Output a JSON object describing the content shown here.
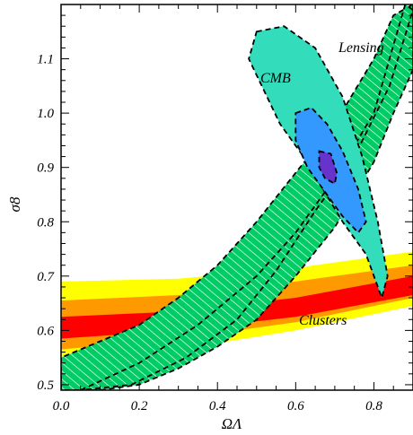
{
  "chart_data": {
    "type": "contour",
    "xlabel": "ΩΛ",
    "ylabel": "σ8",
    "xlim": [
      0.0,
      0.9
    ],
    "ylim": [
      0.49,
      1.2
    ],
    "xticks": [
      0.0,
      0.2,
      0.4,
      0.6,
      0.8
    ],
    "xtick_labels": [
      "0.0",
      "0.2",
      "0.4",
      "0.6",
      "0.8"
    ],
    "yticks": [
      0.5,
      0.6,
      0.7,
      0.8,
      0.9,
      1.0,
      1.1
    ],
    "ytick_labels": [
      "0.5",
      "0.6",
      "0.7",
      "0.8",
      "0.9",
      "1.0",
      "1.1"
    ],
    "grid": false,
    "annotations": [
      "CMB",
      "Lensing",
      "Clusters"
    ],
    "regions": [
      {
        "name": "Clusters",
        "levels": [
          {
            "level": "outer",
            "color": "#ffff00",
            "lower": [
              [
                0.0,
                0.54
              ],
              [
                0.3,
                0.565
              ],
              [
                0.6,
                0.6
              ],
              [
                0.9,
                0.645
              ]
            ],
            "upper": [
              [
                0.0,
                0.69
              ],
              [
                0.3,
                0.695
              ],
              [
                0.6,
                0.715
              ],
              [
                0.9,
                0.745
              ]
            ]
          },
          {
            "level": "middle",
            "color": "#ff9900",
            "lower": [
              [
                0.0,
                0.565
              ],
              [
                0.3,
                0.585
              ],
              [
                0.6,
                0.615
              ],
              [
                0.9,
                0.66
              ]
            ],
            "upper": [
              [
                0.0,
                0.655
              ],
              [
                0.3,
                0.665
              ],
              [
                0.6,
                0.69
              ],
              [
                0.9,
                0.72
              ]
            ]
          },
          {
            "level": "inner",
            "color": "#ff0000",
            "lower": [
              [
                0.0,
                0.585
              ],
              [
                0.3,
                0.6
              ],
              [
                0.6,
                0.625
              ],
              [
                0.9,
                0.665
              ]
            ],
            "upper": [
              [
                0.0,
                0.625
              ],
              [
                0.3,
                0.635
              ],
              [
                0.6,
                0.66
              ],
              [
                0.9,
                0.7
              ]
            ]
          }
        ]
      },
      {
        "name": "Lensing",
        "levels": [
          {
            "level": "outer",
            "color": "#00cc66",
            "polygon": [
              [
                0.0,
                0.49
              ],
              [
                0.0,
                0.55
              ],
              [
                0.1,
                0.58
              ],
              [
                0.2,
                0.61
              ],
              [
                0.3,
                0.66
              ],
              [
                0.4,
                0.72
              ],
              [
                0.5,
                0.8
              ],
              [
                0.6,
                0.89
              ],
              [
                0.7,
                0.98
              ],
              [
                0.8,
                1.1
              ],
              [
                0.85,
                1.18
              ],
              [
                0.9,
                1.2
              ],
              [
                0.9,
                1.08
              ],
              [
                0.85,
                1.0
              ],
              [
                0.8,
                0.91
              ],
              [
                0.7,
                0.79
              ],
              [
                0.6,
                0.7
              ],
              [
                0.5,
                0.62
              ],
              [
                0.4,
                0.57
              ],
              [
                0.3,
                0.53
              ],
              [
                0.2,
                0.5
              ],
              [
                0.1,
                0.49
              ]
            ]
          },
          {
            "level": "inner",
            "color": "#00cc66",
            "polygon": [
              [
                0.05,
                0.49
              ],
              [
                0.2,
                0.54
              ],
              [
                0.35,
                0.61
              ],
              [
                0.5,
                0.7
              ],
              [
                0.6,
                0.78
              ],
              [
                0.7,
                0.88
              ],
              [
                0.8,
                1.0
              ],
              [
                0.88,
                1.2
              ],
              [
                0.9,
                1.19
              ],
              [
                0.84,
                1.05
              ],
              [
                0.75,
                0.92
              ],
              [
                0.65,
                0.82
              ],
              [
                0.55,
                0.71
              ],
              [
                0.45,
                0.62
              ],
              [
                0.32,
                0.55
              ],
              [
                0.18,
                0.5
              ]
            ]
          }
        ]
      },
      {
        "name": "CMB",
        "levels": [
          {
            "level": "outer",
            "color": "#33ddbb",
            "polygon": [
              [
                0.5,
                1.15
              ],
              [
                0.57,
                1.16
              ],
              [
                0.65,
                1.12
              ],
              [
                0.72,
                1.03
              ],
              [
                0.77,
                0.92
              ],
              [
                0.81,
                0.8
              ],
              [
                0.835,
                0.7
              ],
              [
                0.82,
                0.66
              ],
              [
                0.78,
                0.74
              ],
              [
                0.72,
                0.8
              ],
              [
                0.67,
                0.86
              ],
              [
                0.62,
                0.92
              ],
              [
                0.56,
                0.98
              ],
              [
                0.52,
                1.04
              ],
              [
                0.48,
                1.1
              ]
            ]
          },
          {
            "level": "middle",
            "color": "#3399ff",
            "polygon": [
              [
                0.6,
                1.0
              ],
              [
                0.64,
                1.01
              ],
              [
                0.68,
                0.98
              ],
              [
                0.72,
                0.93
              ],
              [
                0.76,
                0.86
              ],
              [
                0.78,
                0.8
              ],
              [
                0.76,
                0.78
              ],
              [
                0.72,
                0.81
              ],
              [
                0.68,
                0.85
              ],
              [
                0.63,
                0.9
              ],
              [
                0.6,
                0.95
              ]
            ]
          },
          {
            "level": "inner",
            "color": "#6633cc",
            "polygon": [
              [
                0.66,
                0.93
              ],
              [
                0.69,
                0.925
              ],
              [
                0.705,
                0.89
              ],
              [
                0.7,
                0.87
              ],
              [
                0.675,
                0.88
              ],
              [
                0.66,
                0.9
              ]
            ]
          }
        ]
      }
    ]
  }
}
